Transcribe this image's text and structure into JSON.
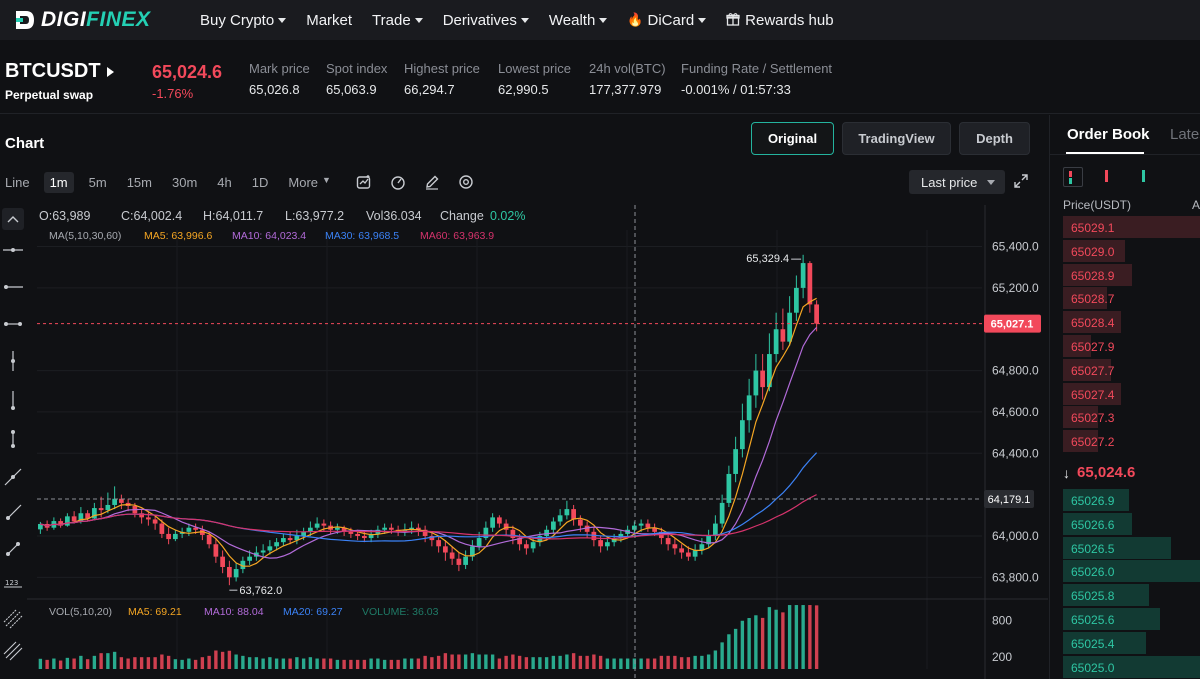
{
  "nav": {
    "logo_main": "DIGI",
    "logo_accent": "FINEX",
    "items": [
      {
        "label": "Buy Crypto",
        "caret": true
      },
      {
        "label": "Market",
        "caret": false
      },
      {
        "label": "Trade",
        "caret": true
      },
      {
        "label": "Derivatives",
        "caret": true
      },
      {
        "label": "Wealth",
        "caret": true
      },
      {
        "label": "DiCard",
        "caret": true
      },
      {
        "label": "Rewards hub",
        "caret": false
      }
    ]
  },
  "ticker": {
    "symbol": "BTCUSDT",
    "type": "Perpetual swap",
    "last_price": "65,024.6",
    "change": "-1.76%",
    "stats": [
      {
        "label": "Mark price",
        "value": "65,026.8"
      },
      {
        "label": "Spot index",
        "value": "65,063.9"
      },
      {
        "label": "Highest price",
        "value": "66,294.7"
      },
      {
        "label": "Lowest price",
        "value": "62,990.5"
      },
      {
        "label": "24h vol(BTC)",
        "value": "177,377.979"
      },
      {
        "label": "Funding Rate / Settlement",
        "value": "-0.001% / 01:57:33"
      }
    ]
  },
  "chart_panel": {
    "title": "Chart",
    "views": [
      "Original",
      "TradingView",
      "Depth"
    ],
    "active_view": "Original",
    "timeframes": [
      "Line",
      "1m",
      "5m",
      "15m",
      "30m",
      "4h",
      "1D",
      "More"
    ],
    "active_timeframe": "1m",
    "price_source": "Last price"
  },
  "chart_data": {
    "type": "candlestick",
    "ohlc_legend": {
      "open": "O:63,989",
      "close": "C:64,002.4",
      "high": "H:64,011.7",
      "low": "L:63,977.2",
      "vol": "Vol36.034",
      "change_label": "Change",
      "change_value": "0.02%"
    },
    "ma_legend": {
      "title": "MA(5,10,30,60)",
      "items": [
        {
          "label": "MA5: 63,996.6",
          "color": "#f5a623"
        },
        {
          "label": "MA10: 64,023.4",
          "color": "#b26bd9"
        },
        {
          "label": "MA30: 63,968.5",
          "color": "#3b82f6"
        },
        {
          "label": "MA60: 63,963.9",
          "color": "#d6336c"
        }
      ]
    },
    "y_ticks": [
      "65,400.0",
      "65,200.0",
      "64,800.0",
      "64,600.0",
      "64,400.0",
      "64,000.0",
      "63,800.0"
    ],
    "y_tick_values": [
      65400,
      65200,
      64800,
      64600,
      64400,
      64000,
      63800
    ],
    "ylim": [
      63700,
      65480
    ],
    "current_price_label": "65,027.1",
    "current_price": 65027.1,
    "crosshair_price_label": "64,179.1",
    "crosshair_price": 64179.1,
    "max_label": "65,329.4",
    "max_value": 65329.4,
    "min_label": "63,762.0",
    "min_value": 63762.0,
    "candles": [
      [
        64032,
        64058,
        64010,
        64068
      ],
      [
        64058,
        64040,
        64025,
        64075
      ],
      [
        64040,
        64072,
        64030,
        64090
      ],
      [
        64072,
        64050,
        64040,
        64085
      ],
      [
        64050,
        64095,
        64045,
        64110
      ],
      [
        64095,
        64070,
        64060,
        64120
      ],
      [
        64070,
        64110,
        64060,
        64140
      ],
      [
        64110,
        64085,
        64070,
        64125
      ],
      [
        64085,
        64135,
        64080,
        64160
      ],
      [
        64135,
        64125,
        64090,
        64190
      ],
      [
        64125,
        64150,
        64110,
        64210
      ],
      [
        64150,
        64180,
        64130,
        64240
      ],
      [
        64180,
        64160,
        64130,
        64200
      ],
      [
        64160,
        64145,
        64120,
        64180
      ],
      [
        64145,
        64110,
        64090,
        64160
      ],
      [
        64110,
        64090,
        64060,
        64130
      ],
      [
        64090,
        64080,
        64050,
        64120
      ],
      [
        64080,
        64060,
        64030,
        64100
      ],
      [
        64060,
        64010,
        63990,
        64080
      ],
      [
        64010,
        63985,
        63960,
        64040
      ],
      [
        63985,
        64010,
        63975,
        64030
      ],
      [
        64010,
        64020,
        63990,
        64040
      ],
      [
        64020,
        64040,
        64000,
        64060
      ],
      [
        64040,
        64030,
        64010,
        64060
      ],
      [
        64030,
        64005,
        63980,
        64050
      ],
      [
        64005,
        63960,
        63940,
        64020
      ],
      [
        63960,
        63900,
        63870,
        63990
      ],
      [
        63900,
        63850,
        63820,
        63930
      ],
      [
        63850,
        63800,
        63762,
        63880
      ],
      [
        63800,
        63840,
        63780,
        63870
      ],
      [
        63840,
        63880,
        63820,
        63900
      ],
      [
        63880,
        63900,
        63860,
        63930
      ],
      [
        63900,
        63920,
        63880,
        63950
      ],
      [
        63920,
        63930,
        63900,
        63960
      ],
      [
        63930,
        63950,
        63910,
        63980
      ],
      [
        63950,
        63970,
        63930,
        63990
      ],
      [
        63970,
        63990,
        63950,
        64010
      ],
      [
        63990,
        63980,
        63960,
        64020
      ],
      [
        63980,
        64000,
        63960,
        64030
      ],
      [
        64000,
        64020,
        63980,
        64040
      ],
      [
        64020,
        64040,
        64000,
        64070
      ],
      [
        64040,
        64060,
        64030,
        64090
      ],
      [
        64060,
        64050,
        64020,
        64080
      ],
      [
        64050,
        64030,
        64010,
        64070
      ],
      [
        64030,
        64040,
        64010,
        64060
      ],
      [
        64040,
        64020,
        64000,
        64050
      ],
      [
        64020,
        64010,
        63990,
        64040
      ],
      [
        64010,
        64000,
        63980,
        64030
      ],
      [
        64000,
        63990,
        63970,
        64020
      ],
      [
        63990,
        64010,
        63970,
        64030
      ],
      [
        64010,
        64030,
        63990,
        64050
      ],
      [
        64030,
        64040,
        64010,
        64060
      ],
      [
        64040,
        64030,
        64010,
        64060
      ],
      [
        64030,
        64020,
        64000,
        64050
      ],
      [
        64020,
        64030,
        64000,
        64060
      ],
      [
        64030,
        64040,
        64010,
        64070
      ],
      [
        64040,
        64030,
        64000,
        64060
      ],
      [
        64030,
        64000,
        63970,
        64050
      ],
      [
        64000,
        63980,
        63950,
        64020
      ],
      [
        63980,
        63950,
        63920,
        64000
      ],
      [
        63950,
        63920,
        63880,
        63980
      ],
      [
        63920,
        63890,
        63860,
        63950
      ],
      [
        63890,
        63860,
        63830,
        63920
      ],
      [
        63860,
        63900,
        63840,
        63930
      ],
      [
        63900,
        63950,
        63880,
        63980
      ],
      [
        63950,
        63990,
        63930,
        64020
      ],
      [
        63990,
        64040,
        63980,
        64070
      ],
      [
        64040,
        64090,
        64020,
        64110
      ],
      [
        64090,
        64060,
        64040,
        64100
      ],
      [
        64060,
        64030,
        64000,
        64080
      ],
      [
        64030,
        63990,
        63960,
        64050
      ],
      [
        63990,
        63960,
        63930,
        64010
      ],
      [
        63960,
        63940,
        63910,
        63980
      ],
      [
        63940,
        63970,
        63920,
        63990
      ],
      [
        63970,
        64000,
        63950,
        64020
      ],
      [
        64000,
        64030,
        63980,
        64050
      ],
      [
        64030,
        64070,
        64010,
        64090
      ],
      [
        64070,
        64100,
        64050,
        64130
      ],
      [
        64100,
        64130,
        64080,
        64170
      ],
      [
        64130,
        64080,
        64050,
        64150
      ],
      [
        64080,
        64050,
        64020,
        64100
      ],
      [
        64050,
        64020,
        63990,
        64070
      ],
      [
        64020,
        63980,
        63950,
        64040
      ],
      [
        63980,
        63950,
        63920,
        64000
      ],
      [
        63950,
        63970,
        63930,
        63990
      ],
      [
        63970,
        63990,
        63950,
        64010
      ],
      [
        63990,
        64010,
        63970,
        64030
      ],
      [
        64010,
        64030,
        63990,
        64050
      ],
      [
        64030,
        64050,
        64010,
        64070
      ],
      [
        64050,
        64060,
        64020,
        64080
      ],
      [
        64060,
        64040,
        64020,
        64080
      ],
      [
        64040,
        64020,
        64000,
        64060
      ],
      [
        64020,
        63990,
        63960,
        64040
      ],
      [
        63990,
        63960,
        63930,
        64010
      ],
      [
        63960,
        63940,
        63910,
        63990
      ],
      [
        63940,
        63920,
        63890,
        63960
      ],
      [
        63920,
        63900,
        63880,
        63950
      ],
      [
        63900,
        63930,
        63880,
        63960
      ],
      [
        63930,
        63960,
        63910,
        63990
      ],
      [
        63960,
        64000,
        63940,
        64030
      ],
      [
        64000,
        64060,
        63980,
        64100
      ],
      [
        64060,
        64160,
        64040,
        64200
      ],
      [
        64160,
        64300,
        64140,
        64340
      ],
      [
        64300,
        64420,
        64260,
        64480
      ],
      [
        64420,
        64560,
        64380,
        64640
      ],
      [
        64560,
        64680,
        64500,
        64760
      ],
      [
        64680,
        64800,
        64620,
        64880
      ],
      [
        64800,
        64720,
        64660,
        64880
      ],
      [
        64720,
        64880,
        64700,
        64980
      ],
      [
        64880,
        65000,
        64840,
        65080
      ],
      [
        65000,
        64940,
        64900,
        65100
      ],
      [
        64940,
        65080,
        64920,
        65160
      ],
      [
        65080,
        65200,
        65040,
        65260
      ],
      [
        65200,
        65320,
        65150,
        65360
      ],
      [
        65320,
        65120,
        65080,
        65329.4
      ],
      [
        65120,
        65027.1,
        64990,
        65140
      ]
    ],
    "volume_legend": {
      "title": "VOL(5,10,20)",
      "items": [
        {
          "label": "MA5: 69.21",
          "color": "#f5a623"
        },
        {
          "label": "MA10: 88.04",
          "color": "#b26bd9"
        },
        {
          "label": "MA20: 69.27",
          "color": "#3b82f6"
        },
        {
          "label": "VOLUME: 36.03",
          "color": "#1f7a66"
        }
      ]
    },
    "volume_ticks": [
      "800",
      "200"
    ],
    "volume_tick_values": [
      800,
      200
    ],
    "volume_ylim": [
      0,
      1100
    ],
    "colors": {
      "up": "#2ec6a3",
      "down": "#f2495b",
      "ma5": "#f5a623",
      "ma10": "#b26bd9",
      "ma30": "#3b82f6",
      "ma60": "#d6336c"
    }
  },
  "order_book": {
    "tabs": [
      "Order Book",
      "Latest"
    ],
    "price_header": "Price(USDT)",
    "amount_header": "A",
    "asks": [
      {
        "price": "65029.1",
        "depth": 1.0
      },
      {
        "price": "65029.0",
        "depth": 0.45
      },
      {
        "price": "65028.9",
        "depth": 0.5
      },
      {
        "price": "65028.7",
        "depth": 0.32
      },
      {
        "price": "65028.4",
        "depth": 0.42
      },
      {
        "price": "65027.9",
        "depth": 0.2
      },
      {
        "price": "65027.7",
        "depth": 0.35
      },
      {
        "price": "65027.4",
        "depth": 0.42
      },
      {
        "price": "65027.3",
        "depth": 0.25
      },
      {
        "price": "65027.2",
        "depth": 0.25
      }
    ],
    "mid_price": "65,024.6",
    "bids": [
      {
        "price": "65026.9",
        "depth": 0.48
      },
      {
        "price": "65026.6",
        "depth": 0.5
      },
      {
        "price": "65026.5",
        "depth": 0.78
      },
      {
        "price": "65026.0",
        "depth": 1.0
      },
      {
        "price": "65025.8",
        "depth": 0.62
      },
      {
        "price": "65025.6",
        "depth": 0.7
      },
      {
        "price": "65025.4",
        "depth": 0.6
      },
      {
        "price": "65025.0",
        "depth": 1.0
      }
    ]
  }
}
